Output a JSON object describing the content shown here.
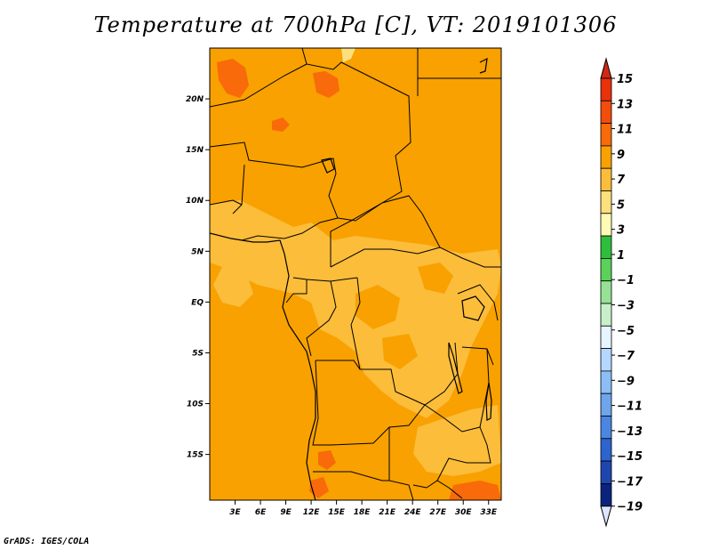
{
  "title": "Temperature at 700hPa [C], VT: 2019101306",
  "footer": "GrADS: IGES/COLA",
  "map": {
    "lon_range": [
      0,
      34.5
    ],
    "lat_range": [
      -19.5,
      25
    ],
    "base_fill": "#f8a100",
    "lat_ticks": [
      {
        "label": "20N",
        "value": 20
      },
      {
        "label": "15N",
        "value": 15
      },
      {
        "label": "10N",
        "value": 10
      },
      {
        "label": "5N",
        "value": 5
      },
      {
        "label": "EQ",
        "value": 0
      },
      {
        "label": "5S",
        "value": -5
      },
      {
        "label": "10S",
        "value": -10
      },
      {
        "label": "15S",
        "value": -15
      }
    ],
    "lon_ticks": [
      {
        "label": "3E",
        "value": 3
      },
      {
        "label": "6E",
        "value": 6
      },
      {
        "label": "9E",
        "value": 9
      },
      {
        "label": "12E",
        "value": 12
      },
      {
        "label": "15E",
        "value": 15
      },
      {
        "label": "18E",
        "value": 18
      },
      {
        "label": "21E",
        "value": 21
      },
      {
        "label": "24E",
        "value": 24
      },
      {
        "label": "27E",
        "value": 27
      },
      {
        "label": "30E",
        "value": 30
      },
      {
        "label": "33E",
        "value": 33
      }
    ]
  },
  "colorbar": {
    "labels": [
      "15",
      "13",
      "11",
      "9",
      "7",
      "5",
      "3",
      "1",
      "−1",
      "−3",
      "−5",
      "−7",
      "−9",
      "−11",
      "−13",
      "−15",
      "−17",
      "−19"
    ],
    "colors": [
      "#e8320a",
      "#f24d0a",
      "#f86a0a",
      "#f8a100",
      "#fbbd3a",
      "#fde07c",
      "#fffab4",
      "#2fbe3c",
      "#5ad25a",
      "#96e196",
      "#c8f0c8",
      "#e6f5ff",
      "#b4d7ff",
      "#8cbef5",
      "#6ea5eb",
      "#4b87e1",
      "#2d64cd",
      "#1e46af",
      "#0a237d"
    ],
    "top_arrow_color": "#d22814",
    "bottom_arrow_color": "#dce6ff"
  }
}
